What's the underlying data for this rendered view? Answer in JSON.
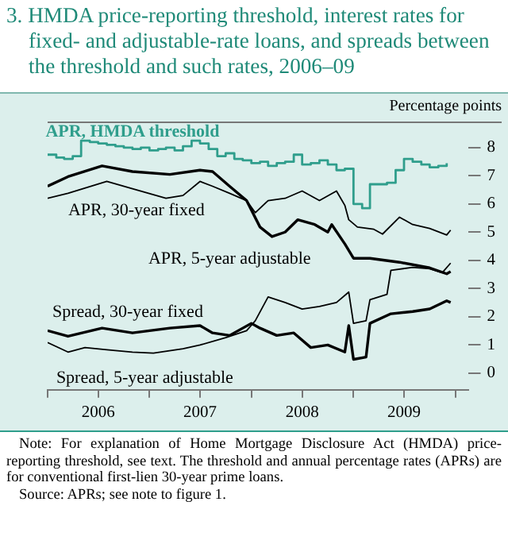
{
  "chart_data": {
    "type": "line",
    "title": "3. HMDA price-reporting threshold, interest rates for fixed- and adjustable-rate loans, and spreads between the threshold and such rates, 2006–09",
    "ylabel": "Percentage points",
    "xlim": [
      "2006-01-01",
      "2010-02-15"
    ],
    "xticks": [
      {
        "value": "2006-01-01",
        "label": null
      },
      {
        "value": "2006-07-01",
        "label": "2006"
      },
      {
        "value": "2007-01-01",
        "label": null
      },
      {
        "value": "2007-07-01",
        "label": "2007"
      },
      {
        "value": "2008-01-01",
        "label": null
      },
      {
        "value": "2008-07-01",
        "label": "2008"
      },
      {
        "value": "2009-01-01",
        "label": null
      },
      {
        "value": "2009-07-01",
        "label": "2009"
      },
      {
        "value": "2010-01-01",
        "label": null
      }
    ],
    "ylim": [
      -0.6,
      8.9
    ],
    "yticks": [
      0,
      1,
      2,
      3,
      4,
      5,
      6,
      7,
      8
    ],
    "grid": false,
    "legend": false,
    "marker": "none",
    "series": [
      {
        "name": "APR, HMDA threshold",
        "type": "step",
        "color": "#2f9e8c",
        "x": [
          "2006-01-01",
          "2006-02-01",
          "2006-03-01",
          "2006-04-01",
          "2006-05-01",
          "2006-06-01",
          "2006-07-01",
          "2006-08-01",
          "2006-09-01",
          "2006-10-01",
          "2006-11-01",
          "2006-12-01",
          "2007-01-01",
          "2007-02-01",
          "2007-03-01",
          "2007-04-01",
          "2007-05-01",
          "2007-06-01",
          "2007-07-01",
          "2007-08-01",
          "2007-09-01",
          "2007-10-01",
          "2007-11-01",
          "2007-12-01",
          "2008-01-01",
          "2008-02-01",
          "2008-03-01",
          "2008-04-01",
          "2008-05-01",
          "2008-06-01",
          "2008-07-01",
          "2008-08-01",
          "2008-09-01",
          "2008-10-01",
          "2008-11-01",
          "2008-12-01",
          "2009-01-01",
          "2009-02-01",
          "2009-03-01",
          "2009-04-01",
          "2009-05-01",
          "2009-06-01",
          "2009-07-01",
          "2009-08-01",
          "2009-09-01",
          "2009-10-01",
          "2009-11-01",
          "2009-12-01"
        ],
        "values": [
          7.75,
          7.65,
          7.6,
          7.7,
          8.25,
          8.2,
          8.15,
          8.1,
          8.05,
          8.0,
          7.95,
          8.0,
          7.9,
          7.95,
          8.0,
          7.9,
          8.05,
          8.25,
          8.15,
          7.95,
          7.7,
          7.8,
          7.6,
          7.55,
          7.45,
          7.5,
          7.35,
          7.45,
          7.5,
          7.75,
          7.4,
          7.45,
          7.55,
          7.4,
          7.2,
          7.25,
          6.0,
          5.85,
          6.7,
          6.7,
          6.75,
          7.2,
          7.6,
          7.5,
          7.4,
          7.3,
          7.35,
          7.45
        ]
      },
      {
        "name": "APR, 30-year fixed",
        "color": "#000000",
        "x": [
          "2006-01-01",
          "2006-03-15",
          "2006-08-01",
          "2006-11-01",
          "2007-03-01",
          "2007-05-01",
          "2007-07-01",
          "2007-08-15",
          "2007-10-15",
          "2007-12-15",
          "2008-01-15",
          "2008-03-01",
          "2008-05-01",
          "2008-07-01",
          "2008-09-01",
          "2008-11-01",
          "2008-12-01",
          "2008-12-15",
          "2009-01-15",
          "2009-03-15",
          "2009-04-15",
          "2009-06-15",
          "2009-08-01",
          "2009-10-01",
          "2009-12-01",
          "2009-12-15"
        ],
        "values": [
          6.2,
          6.38,
          6.8,
          6.54,
          6.2,
          6.3,
          6.8,
          6.63,
          6.38,
          6.12,
          5.69,
          6.12,
          6.2,
          6.46,
          6.12,
          6.46,
          5.95,
          5.44,
          5.18,
          5.1,
          4.93,
          5.53,
          5.27,
          5.13,
          4.9,
          5.07
        ]
      },
      {
        "name": "APR, 5-year adjustable",
        "color": "#000000",
        "x": [
          "2006-01-01",
          "2006-03-15",
          "2006-07-15",
          "2006-11-01",
          "2007-03-15",
          "2007-07-01",
          "2007-08-15",
          "2007-10-15",
          "2007-12-15",
          "2008-02-01",
          "2008-03-15",
          "2008-05-01",
          "2008-06-15",
          "2008-08-15",
          "2008-10-01",
          "2008-10-15",
          "2008-12-01",
          "2009-01-01",
          "2009-03-01",
          "2009-06-15",
          "2009-10-01",
          "2009-12-01",
          "2009-12-15"
        ],
        "values": [
          6.63,
          6.97,
          7.35,
          7.15,
          7.05,
          7.2,
          7.15,
          6.63,
          6.12,
          5.18,
          4.84,
          5.0,
          5.44,
          5.27,
          5.0,
          5.27,
          4.58,
          4.07,
          4.07,
          3.93,
          3.73,
          3.52,
          3.6
        ]
      },
      {
        "name": "Spread, 30-year fixed",
        "color": "#000000",
        "x": [
          "2006-01-01",
          "2006-03-15",
          "2006-07-15",
          "2006-11-01",
          "2007-03-15",
          "2007-07-01",
          "2007-08-15",
          "2007-10-15",
          "2008-01-01",
          "2008-02-01",
          "2008-04-01",
          "2008-06-01",
          "2008-08-01",
          "2008-10-01",
          "2008-12-01",
          "2008-12-15",
          "2009-01-01",
          "2009-02-15",
          "2009-03-01",
          "2009-05-15",
          "2009-08-01",
          "2009-10-01",
          "2009-12-01",
          "2009-12-15"
        ],
        "values": [
          1.5,
          1.3,
          1.59,
          1.42,
          1.59,
          1.68,
          1.42,
          1.33,
          1.76,
          1.59,
          1.33,
          1.42,
          0.9,
          0.99,
          0.74,
          1.68,
          0.48,
          0.56,
          1.76,
          2.1,
          2.18,
          2.27,
          2.56,
          2.5
        ]
      },
      {
        "name": "Spread, 5-year adjustable",
        "color": "#000000",
        "x": [
          "2006-01-01",
          "2006-03-15",
          "2006-05-15",
          "2006-08-01",
          "2006-11-01",
          "2007-01-15",
          "2007-05-01",
          "2007-07-01",
          "2007-10-01",
          "2007-12-15",
          "2008-01-15",
          "2008-03-01",
          "2008-05-01",
          "2008-07-01",
          "2008-09-01",
          "2008-11-01",
          "2008-12-15",
          "2009-01-01",
          "2009-02-15",
          "2009-03-01",
          "2009-05-01",
          "2009-05-15",
          "2009-08-01",
          "2009-10-01",
          "2009-11-15",
          "2009-12-15"
        ],
        "values": [
          1.08,
          0.74,
          0.9,
          0.82,
          0.74,
          0.7,
          0.86,
          0.99,
          1.25,
          1.5,
          1.85,
          2.7,
          2.5,
          2.27,
          2.36,
          2.5,
          2.87,
          1.76,
          1.85,
          2.6,
          2.79,
          3.64,
          3.75,
          3.7,
          3.56,
          3.9
        ]
      }
    ],
    "annotations": [
      "Note: For explanation of Home Mortgage Disclosure Act (HMDA) price-reporting threshold, see text. The threshold and annual percentage rates (APRs) are for conventional first-lien 30-year prime loans.",
      "Source: APRs; see note to figure 1."
    ]
  }
}
